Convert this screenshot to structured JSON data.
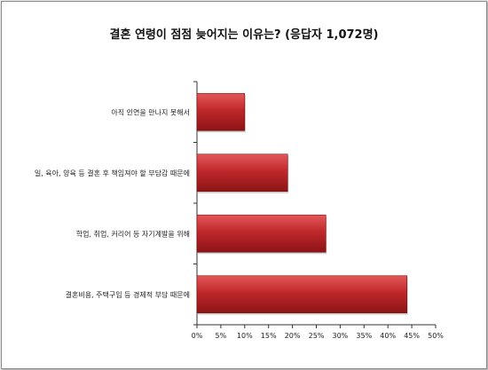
{
  "chart_data": {
    "type": "bar",
    "orientation": "horizontal",
    "title": "결혼 연령이 점점 늦어지는 이유는? (응답자 1,072명)",
    "categories": [
      "아직 인연을 만나지 못해서",
      "일, 육아, 양육 등 결혼 후 책임져야 할 부담감 때문에",
      "학업, 취업, 커리어 등 자기계발을 위해",
      "결혼비용, 주택구입 등 경제적 부담 때문에"
    ],
    "values": [
      10,
      19,
      27,
      44
    ],
    "xlim": [
      0,
      50
    ],
    "xticks": [
      "0%",
      "5%",
      "10%",
      "15%",
      "20%",
      "25%",
      "30%",
      "35%",
      "40%",
      "45%",
      "50%"
    ],
    "grid": false,
    "legend": "none",
    "colors": {
      "bar": "#c0282b",
      "bar_dark": "#8b1416",
      "bar_light": "#e3585a"
    }
  }
}
